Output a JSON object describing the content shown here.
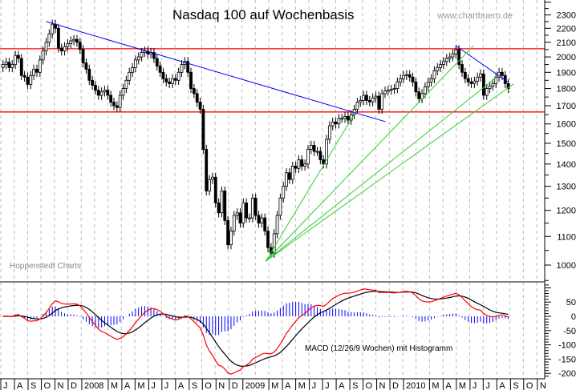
{
  "chart_data": {
    "type": "candlestick",
    "title": "Nasdaq 100 auf Wochenbasis",
    "watermark": "www.chartbuero.de",
    "source_label": "Hoppenstedt Charts",
    "y_scale": "log",
    "ylim": [
      900,
      2400
    ],
    "y_ticks": [
      1000,
      1100,
      1200,
      1300,
      1400,
      1500,
      1600,
      1700,
      1800,
      1900,
      2000,
      2100,
      2200,
      2300
    ],
    "y_tick_labels": [
      "1000",
      "1100",
      "1200",
      "1300",
      "1400",
      "1500",
      "1600",
      "1700",
      "1800",
      "1900",
      "2000",
      "2100",
      "2200",
      "2300"
    ],
    "x_range": [
      "2007-07-01",
      "2010-11-30"
    ],
    "x_labels": [
      {
        "month": "2007-07",
        "label": "J"
      },
      {
        "month": "2007-08",
        "label": "A"
      },
      {
        "month": "2007-09",
        "label": "S"
      },
      {
        "month": "2007-10",
        "label": "O"
      },
      {
        "month": "2007-11",
        "label": "N"
      },
      {
        "month": "2007-12",
        "label": "D"
      },
      {
        "month": "2008-01",
        "label": "2008"
      },
      {
        "month": "2008-03",
        "label": "M"
      },
      {
        "month": "2008-04",
        "label": "A"
      },
      {
        "month": "2008-05",
        "label": "M"
      },
      {
        "month": "2008-06",
        "label": "J"
      },
      {
        "month": "2008-07",
        "label": "J"
      },
      {
        "month": "2008-08",
        "label": "A"
      },
      {
        "month": "2008-09",
        "label": "S"
      },
      {
        "month": "2008-10",
        "label": "O"
      },
      {
        "month": "2008-11",
        "label": "N"
      },
      {
        "month": "2008-12",
        "label": "D"
      },
      {
        "month": "2009-01",
        "label": "2009"
      },
      {
        "month": "2009-03",
        "label": "M"
      },
      {
        "month": "2009-04",
        "label": "A"
      },
      {
        "month": "2009-05",
        "label": "M"
      },
      {
        "month": "2009-06",
        "label": "J"
      },
      {
        "month": "2009-07",
        "label": "J"
      },
      {
        "month": "2009-08",
        "label": "A"
      },
      {
        "month": "2009-09",
        "label": "S"
      },
      {
        "month": "2009-10",
        "label": "O"
      },
      {
        "month": "2009-11",
        "label": "N"
      },
      {
        "month": "2009-12",
        "label": "D"
      },
      {
        "month": "2010-01",
        "label": "2010"
      },
      {
        "month": "2010-03",
        "label": "M"
      },
      {
        "month": "2010-04",
        "label": "A"
      },
      {
        "month": "2010-05",
        "label": "M"
      },
      {
        "month": "2010-06",
        "label": "J"
      },
      {
        "month": "2010-07",
        "label": "J"
      },
      {
        "month": "2010-08",
        "label": "A"
      },
      {
        "month": "2010-09",
        "label": "S"
      },
      {
        "month": "2010-10",
        "label": "O"
      },
      {
        "month": "2010-11",
        "label": "N"
      }
    ],
    "first_week": "2007-07-06",
    "weekly_close": [
      1950,
      1965,
      1930,
      1950,
      2010,
      1990,
      1880,
      1870,
      1825,
      1880,
      1920,
      1900,
      1980,
      2040,
      2100,
      2160,
      2230,
      2200,
      2060,
      2040,
      2070,
      2090,
      2110,
      2120,
      2100,
      2050,
      1960,
      1920,
      1850,
      1820,
      1790,
      1760,
      1780,
      1790,
      1760,
      1720,
      1700,
      1690,
      1760,
      1800,
      1850,
      1900,
      1930,
      1980,
      2000,
      2030,
      2040,
      2020,
      2030,
      1990,
      1940,
      1900,
      1860,
      1840,
      1830,
      1860,
      1850,
      1900,
      1950,
      1970,
      1900,
      1800,
      1770,
      1720,
      1680,
      1470,
      1280,
      1330,
      1340,
      1230,
      1190,
      1280,
      1160,
      1070,
      1120,
      1180,
      1190,
      1150,
      1230,
      1170,
      1170,
      1250,
      1180,
      1150,
      1170,
      1120,
      1060,
      1040,
      1110,
      1180,
      1250,
      1300,
      1360,
      1330,
      1390,
      1380,
      1420,
      1390,
      1400,
      1470,
      1490,
      1460,
      1460,
      1420,
      1400,
      1520,
      1590,
      1610,
      1600,
      1630,
      1630,
      1640,
      1620,
      1650,
      1680,
      1720,
      1730,
      1760,
      1730,
      1722,
      1745,
      1755,
      1680,
      1770,
      1785,
      1790,
      1795,
      1800,
      1840,
      1860,
      1880,
      1885,
      1870,
      1840,
      1780,
      1740,
      1770,
      1810,
      1840,
      1860,
      1910,
      1930,
      1950,
      1970,
      1990,
      2000,
      2020,
      2050,
      1950,
      1900,
      1860,
      1840,
      1830,
      1845,
      1870,
      1890,
      1760,
      1800,
      1815,
      1830,
      1870,
      1900,
      1880,
      1830,
      1800
    ],
    "horizontal_lines": [
      {
        "price": 2055,
        "color": "#ff0000"
      },
      {
        "price": 1665,
        "color": "#ff0000"
      }
    ],
    "trend_lines": [
      {
        "from": [
          "2007-10-12",
          2250
        ],
        "to": [
          "2009-11-21",
          1612
        ],
        "color": "#0000ff"
      },
      {
        "from": [
          "2010-04-30",
          2075
        ],
        "to": [
          "2010-08-26",
          1840
        ],
        "color": "#0000ff"
      },
      {
        "from": [
          "2009-02-22",
          1013
        ],
        "to": [
          "2009-09-16",
          1673
        ],
        "color": "#33cc33"
      },
      {
        "from": [
          "2009-02-22",
          1013
        ],
        "to": [
          "2010-06-09",
          2076
        ],
        "color": "#33cc33"
      },
      {
        "from": [
          "2009-02-22",
          1013
        ],
        "to": [
          "2010-07-30",
          1866
        ],
        "color": "#33cc33"
      },
      {
        "from": [
          "2009-02-22",
          1013
        ],
        "to": [
          "2010-09-08",
          1828
        ],
        "color": "#33cc33"
      }
    ],
    "macd": {
      "label": "MACD (12/26/9 Wochen) mit Histogramm",
      "params": [
        12,
        26,
        9
      ],
      "ylim": [
        -219,
        121
      ],
      "y_ticks": [
        50,
        0,
        -50,
        -100,
        -150,
        -200
      ],
      "y_tick_labels": [
        "50",
        "0",
        "-50",
        "-100",
        "-150",
        "-200"
      ],
      "macd_color": "#ff0000",
      "signal_color": "#000000",
      "histogram_color": "#0000ff"
    },
    "colors": {
      "up_body": "#ffffff",
      "down_body": "#000000",
      "grid": "#bbbbbb"
    }
  }
}
